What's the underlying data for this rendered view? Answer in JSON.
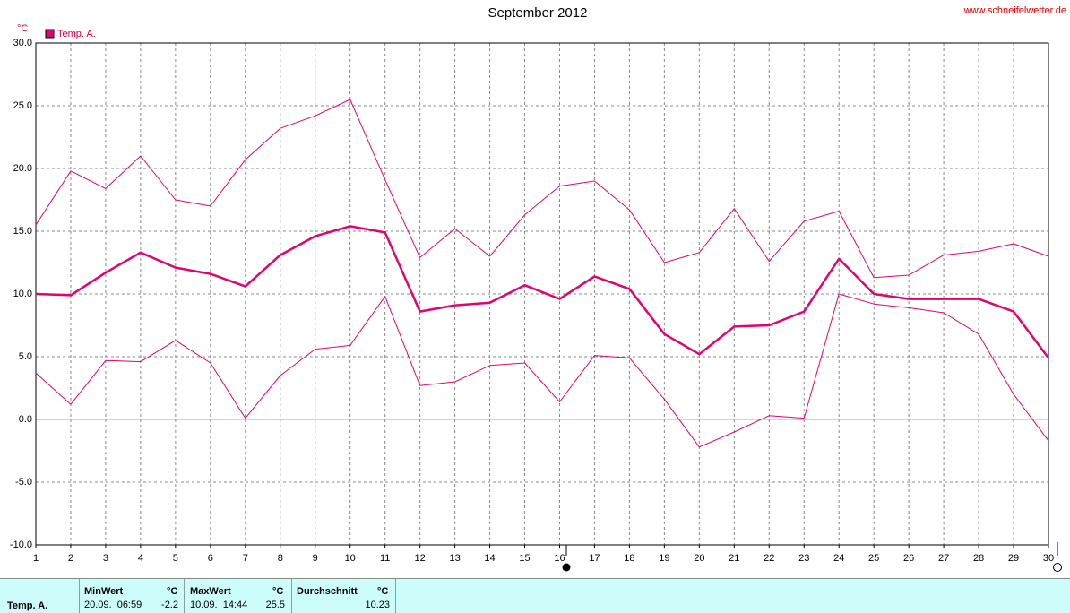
{
  "chart_data": {
    "type": "line",
    "title": "September 2012",
    "source": "www.schneifelwetter.de",
    "y_unit": "°C",
    "x": [
      1,
      2,
      3,
      4,
      5,
      6,
      7,
      8,
      9,
      10,
      11,
      12,
      13,
      14,
      15,
      16,
      17,
      18,
      19,
      20,
      21,
      22,
      23,
      24,
      25,
      26,
      27,
      28,
      29,
      30
    ],
    "xlim": [
      1,
      30
    ],
    "ylim": [
      -10,
      30
    ],
    "yticks": [
      {
        "value": 30,
        "label": "30.0"
      },
      {
        "value": 25,
        "label": "25.0"
      },
      {
        "value": 20,
        "label": "20.0"
      },
      {
        "value": 15,
        "label": "15.0"
      },
      {
        "value": 10,
        "label": "10.0"
      },
      {
        "value": 5,
        "label": "5.0"
      },
      {
        "value": 0,
        "label": "0.0"
      },
      {
        "value": -5,
        "label": "-5.0"
      },
      {
        "value": -10,
        "label": "-10.0"
      }
    ],
    "grid": true,
    "series": [
      {
        "name": "Temp. A.",
        "color": "#e0056e",
        "width": 2.5,
        "values": [
          10.0,
          9.9,
          11.7,
          13.3,
          12.1,
          11.6,
          10.6,
          13.1,
          14.6,
          15.4,
          14.9,
          8.6,
          9.1,
          9.3,
          10.7,
          9.6,
          11.4,
          10.4,
          6.8,
          5.2,
          7.4,
          7.5,
          8.6,
          12.8,
          10.0,
          9.6,
          9.6,
          9.6,
          8.6,
          4.9
        ]
      },
      {
        "color": "#e0056e",
        "width": 1,
        "values": [
          15.5,
          19.8,
          18.4,
          21.0,
          17.5,
          17.0,
          20.7,
          23.2,
          24.2,
          25.5,
          19.1,
          12.9,
          15.2,
          13.0,
          16.3,
          18.6,
          19.0,
          16.7,
          12.5,
          13.3,
          16.8,
          12.6,
          15.8,
          16.6,
          11.3,
          11.5,
          13.1,
          13.4,
          14.0,
          13.0
        ]
      },
      {
        "color": "#e0056e",
        "width": 1,
        "values": [
          3.7,
          1.2,
          4.7,
          4.6,
          6.3,
          4.5,
          0.1,
          3.5,
          5.6,
          5.9,
          9.8,
          2.7,
          3.0,
          4.3,
          4.5,
          1.4,
          5.1,
          4.9,
          1.6,
          -2.2,
          -1.0,
          0.3,
          0.1,
          10.0,
          9.2,
          8.9,
          8.5,
          6.8,
          2.0,
          -1.7
        ]
      }
    ],
    "summary": {
      "row_label": "Temp. A.",
      "min": {
        "header": "MinWert",
        "unit": "°C",
        "time": "20.09.  06:59",
        "value": -2.2
      },
      "max": {
        "header": "MaxWert",
        "unit": "°C",
        "time": "10.09.  14:44",
        "value": 25.5
      },
      "avg": {
        "header": "Durchschnitt",
        "unit": "°C",
        "value": 10.23
      }
    }
  }
}
